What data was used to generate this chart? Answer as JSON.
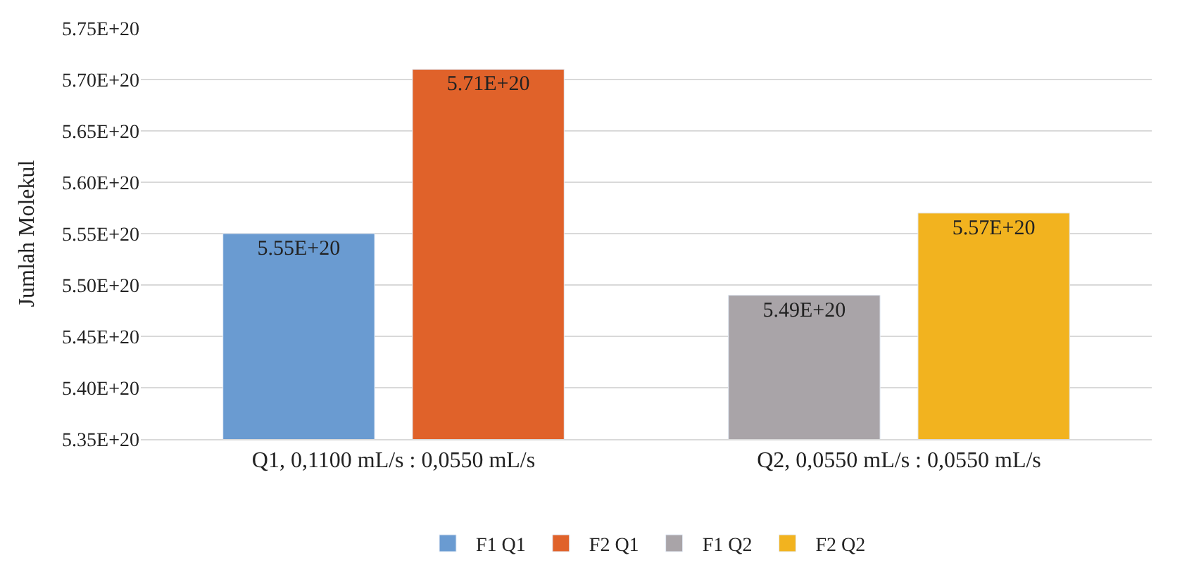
{
  "chart_data": {
    "type": "bar",
    "ylabel": "Jumlah Molekul",
    "categories": [
      "Q1, 0,1100 mL/s : 0,0550 mL/s",
      "Q2, 0,0550 mL/s : 0,0550 mL/s"
    ],
    "series": [
      {
        "name": "F1 Q1",
        "color": "#6a9bd1",
        "values": [
          5.55e+20,
          null
        ],
        "value_labels": [
          "5.55E+20",
          null
        ]
      },
      {
        "name": "F2 Q1",
        "color": "#e0622a",
        "values": [
          5.71e+20,
          null
        ],
        "value_labels": [
          "5.71E+20",
          null
        ]
      },
      {
        "name": "F1 Q2",
        "color": "#a9a4a8",
        "values": [
          null,
          5.49e+20
        ],
        "value_labels": [
          null,
          "5.49E+20"
        ]
      },
      {
        "name": "F2 Q2",
        "color": "#f2b31f",
        "values": [
          null,
          5.57e+20
        ],
        "value_labels": [
          null,
          "5.57E+20"
        ]
      }
    ],
    "ylim": [
      5.35e+20,
      5.75e+20
    ],
    "yticks": [
      {
        "value": 5.35e+20,
        "label": "5.35E+20"
      },
      {
        "value": 5.4e+20,
        "label": "5.40E+20"
      },
      {
        "value": 5.45e+20,
        "label": "5.45E+20"
      },
      {
        "value": 5.5e+20,
        "label": "5.50E+20"
      },
      {
        "value": 5.55e+20,
        "label": "5.55E+20"
      },
      {
        "value": 5.6e+20,
        "label": "5.60E+20"
      },
      {
        "value": 5.65e+20,
        "label": "5.65E+20"
      },
      {
        "value": 5.7e+20,
        "label": "5.70E+20"
      },
      {
        "value": 5.75e+20,
        "label": "5.75E+20"
      }
    ],
    "grid": "y",
    "legend": "bottom"
  }
}
